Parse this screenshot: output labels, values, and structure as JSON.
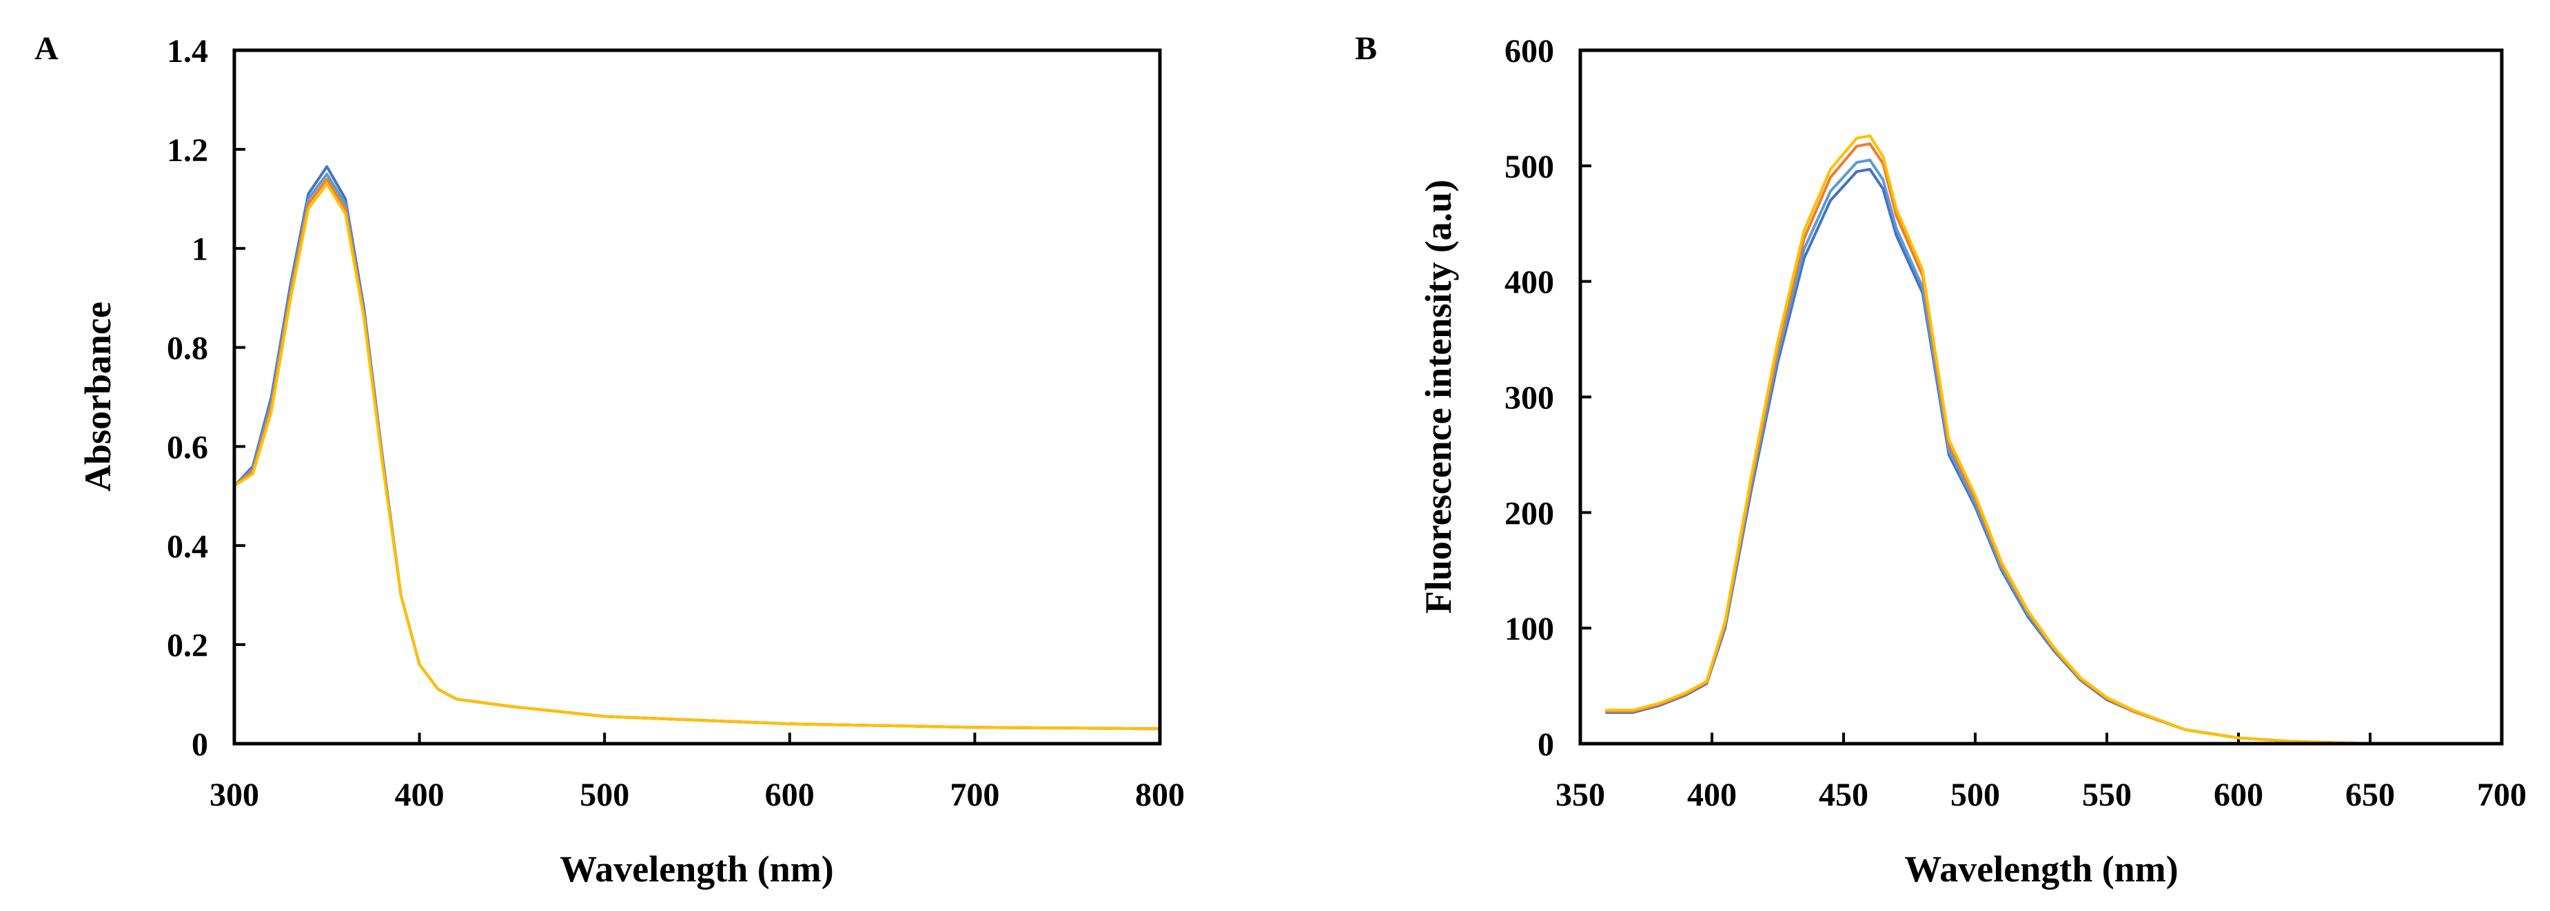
{
  "chart_data": [
    {
      "panel": "A",
      "type": "line",
      "xlabel": "Wavelength (nm)",
      "ylabel": "Absorbance",
      "xlim": [
        300,
        800
      ],
      "ylim": [
        0,
        1.4
      ],
      "xticks": [
        300,
        400,
        500,
        600,
        700,
        800
      ],
      "yticks": [
        0,
        0.2,
        0.4,
        0.6,
        0.8,
        1,
        1.2,
        1.4
      ],
      "xtick_labels": [
        "300",
        "400",
        "500",
        "600",
        "700",
        "800"
      ],
      "ytick_labels": [
        "0",
        "0.2",
        "0.4",
        "0.6",
        "0.8",
        "1",
        "1.2",
        "1.4"
      ],
      "grid": false,
      "series": [
        {
          "color": "#4472C4",
          "x": [
            300,
            310,
            320,
            330,
            340,
            350,
            360,
            370,
            380,
            390,
            400,
            410,
            420,
            450,
            500,
            600,
            700,
            800
          ],
          "y": [
            0.52,
            0.56,
            0.7,
            0.92,
            1.11,
            1.165,
            1.1,
            0.88,
            0.58,
            0.3,
            0.16,
            0.11,
            0.09,
            0.075,
            0.055,
            0.04,
            0.033,
            0.03
          ]
        },
        {
          "color": "#5B9BD5",
          "x": [
            300,
            310,
            320,
            330,
            340,
            350,
            360,
            370,
            380,
            390,
            400,
            410,
            420,
            450,
            500,
            600,
            700,
            800
          ],
          "y": [
            0.52,
            0.555,
            0.69,
            0.91,
            1.1,
            1.15,
            1.09,
            0.87,
            0.575,
            0.3,
            0.16,
            0.11,
            0.09,
            0.075,
            0.055,
            0.04,
            0.033,
            0.03
          ]
        },
        {
          "color": "#ED7D31",
          "x": [
            300,
            310,
            320,
            330,
            340,
            350,
            360,
            370,
            380,
            390,
            400,
            410,
            420,
            450,
            500,
            600,
            700,
            800
          ],
          "y": [
            0.52,
            0.55,
            0.68,
            0.9,
            1.09,
            1.14,
            1.08,
            0.865,
            0.57,
            0.3,
            0.16,
            0.11,
            0.09,
            0.075,
            0.055,
            0.04,
            0.033,
            0.03
          ]
        },
        {
          "color": "#FFC000",
          "x": [
            300,
            310,
            320,
            330,
            340,
            350,
            360,
            370,
            380,
            390,
            400,
            410,
            420,
            450,
            500,
            600,
            700,
            800
          ],
          "y": [
            0.52,
            0.545,
            0.67,
            0.89,
            1.08,
            1.13,
            1.07,
            0.86,
            0.565,
            0.3,
            0.16,
            0.11,
            0.09,
            0.075,
            0.055,
            0.04,
            0.033,
            0.03
          ]
        }
      ]
    },
    {
      "panel": "B",
      "type": "line",
      "xlabel": "Wavelength (nm)",
      "ylabel": "Fluorescence intensity (a.u)",
      "xlim": [
        350,
        700
      ],
      "ylim": [
        0,
        600
      ],
      "xticks": [
        350,
        400,
        450,
        500,
        550,
        600,
        650,
        700
      ],
      "yticks": [
        0,
        100,
        200,
        300,
        400,
        500,
        600
      ],
      "xtick_labels": [
        "350",
        "400",
        "450",
        "500",
        "550",
        "600",
        "650",
        "700"
      ],
      "ytick_labels": [
        "0",
        "100",
        "200",
        "300",
        "400",
        "500",
        "600"
      ],
      "grid": false,
      "series": [
        {
          "color": "#4472C4",
          "x": [
            360,
            370,
            380,
            390,
            398,
            405,
            415,
            425,
            435,
            445,
            455,
            460,
            465,
            470,
            480,
            490,
            500,
            510,
            520,
            530,
            540,
            550,
            560,
            580,
            600,
            620,
            650,
            670,
            700
          ],
          "y": [
            27,
            27,
            33,
            42,
            52,
            100,
            220,
            330,
            420,
            470,
            495,
            497,
            480,
            440,
            390,
            250,
            205,
            150,
            110,
            80,
            55,
            38,
            28,
            12,
            5,
            2,
            0,
            0,
            0
          ]
        },
        {
          "color": "#5B9BD5",
          "x": [
            360,
            370,
            380,
            390,
            398,
            405,
            415,
            425,
            435,
            445,
            455,
            460,
            465,
            470,
            480,
            490,
            500,
            510,
            520,
            530,
            540,
            550,
            560,
            580,
            600,
            620,
            650,
            670,
            700
          ],
          "y": [
            28,
            28,
            34,
            43,
            53,
            102,
            224,
            336,
            428,
            478,
            503,
            505,
            488,
            446,
            395,
            254,
            208,
            152,
            112,
            81,
            56,
            39,
            28,
            12,
            5,
            2,
            0,
            0,
            0
          ]
        },
        {
          "color": "#ED7D31",
          "x": [
            360,
            370,
            380,
            390,
            398,
            405,
            415,
            425,
            435,
            445,
            455,
            460,
            465,
            470,
            480,
            490,
            500,
            510,
            520,
            530,
            540,
            550,
            560,
            580,
            600,
            620,
            650,
            670,
            700
          ],
          "y": [
            28,
            28,
            34,
            43,
            53,
            104,
            228,
            342,
            437,
            490,
            517,
            519,
            502,
            457,
            405,
            259,
            212,
            155,
            114,
            82,
            56,
            39,
            28,
            12,
            5,
            2,
            0,
            0,
            0
          ]
        },
        {
          "color": "#FFC000",
          "x": [
            360,
            370,
            380,
            390,
            398,
            405,
            415,
            425,
            435,
            445,
            455,
            460,
            465,
            470,
            480,
            490,
            500,
            510,
            520,
            530,
            540,
            550,
            560,
            580,
            600,
            620,
            650,
            670,
            700
          ],
          "y": [
            29,
            29,
            35,
            44,
            54,
            106,
            232,
            348,
            444,
            497,
            524,
            526,
            508,
            463,
            410,
            263,
            215,
            157,
            115,
            83,
            57,
            40,
            29,
            12,
            5,
            2,
            0,
            0,
            0
          ]
        }
      ]
    }
  ]
}
